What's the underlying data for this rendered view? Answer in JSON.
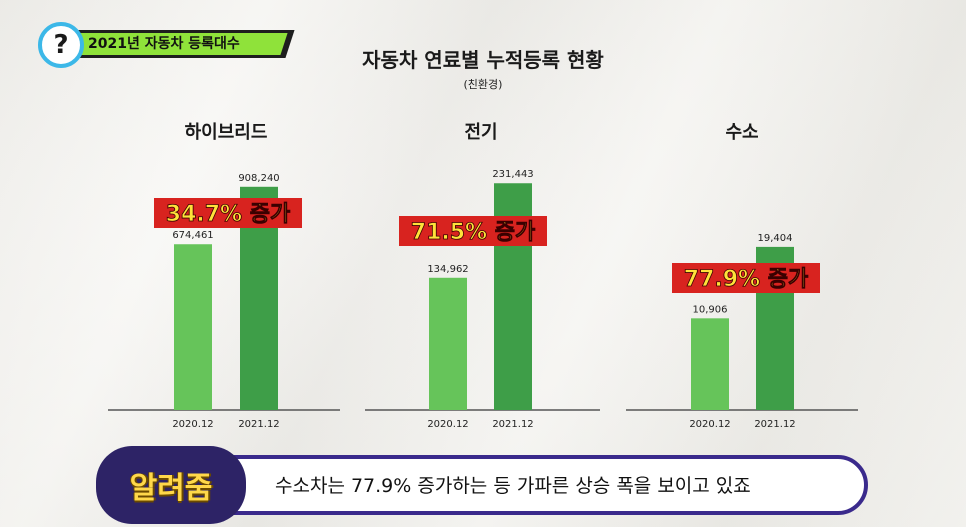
{
  "badge": {
    "icon": "question-icon",
    "symbol": "?",
    "text": "2021년 자동차 등록대수"
  },
  "header": {
    "title": "자동차 연료별 누적등록 현황",
    "subtitle": "(친환경)"
  },
  "chart_data": {
    "type": "bar",
    "panels": [
      {
        "title": "하이브리드",
        "categories": [
          "2020.12",
          "2021.12"
        ],
        "values": [
          674461,
          908240
        ],
        "labels": [
          "674,461",
          "908,240"
        ],
        "increase": "34.7% 증가",
        "ylim": [
          0,
          1180000
        ]
      },
      {
        "title": "전기",
        "categories": [
          "2020.12",
          "2021.12"
        ],
        "values": [
          134962,
          231443
        ],
        "labels": [
          "134,962",
          "231,443"
        ],
        "increase": "71.5% 증가",
        "ylim": [
          0,
          296000
        ]
      },
      {
        "title": "수소",
        "categories": [
          "2020.12",
          "2021.12"
        ],
        "values": [
          10906,
          19404
        ],
        "labels": [
          "10,906",
          "19,404"
        ],
        "increase": "77.9% 증가",
        "ylim": [
          0,
          34500
        ]
      }
    ],
    "colors": {
      "bar_2020": "#66c45a",
      "bar_2021": "#3e9e48",
      "increase_bg": "#d8231f",
      "increase_text": "#ffe23a"
    }
  },
  "caption": {
    "speaker": "알려줌",
    "text": "수소차는 77.9% 증가하는 등 가파른 상승 폭을 보이고 있죠"
  }
}
